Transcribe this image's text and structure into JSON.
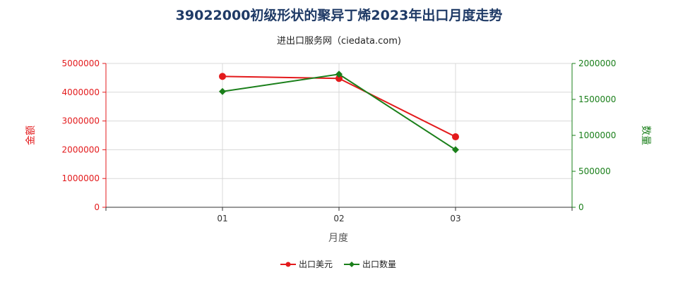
{
  "chart_data": {
    "type": "line",
    "title": "39022000初级形状的聚异丁烯2023年出口月度走势",
    "subtitle": "进出口服务网（ciedata.com)",
    "xlabel": "月度",
    "categories": [
      "01",
      "02",
      "03"
    ],
    "y_left": {
      "label": "金额",
      "lim": [
        0,
        5000000
      ],
      "ticks": [
        "0",
        "1000000",
        "2000000",
        "3000000",
        "4000000",
        "5000000"
      ],
      "tick_values": [
        0,
        1000000,
        2000000,
        3000000,
        4000000,
        5000000
      ],
      "color": "#e31a1c"
    },
    "y_right": {
      "label": "数量",
      "lim": [
        0,
        2000000
      ],
      "ticks": [
        "0",
        "500000",
        "1000000",
        "1500000",
        "2000000"
      ],
      "tick_values": [
        0,
        500000,
        1000000,
        1500000,
        2000000
      ],
      "color": "#1a7f1a"
    },
    "series": [
      {
        "name": "出口美元",
        "axis": "left",
        "color": "#e31a1c",
        "marker": "circle",
        "values": [
          4550000,
          4480000,
          2450000
        ]
      },
      {
        "name": "出口数量",
        "axis": "right",
        "color": "#1a7f1a",
        "marker": "diamond",
        "values": [
          1610000,
          1850000,
          800000
        ]
      }
    ],
    "grid": true,
    "legend_position": "bottom-center"
  }
}
